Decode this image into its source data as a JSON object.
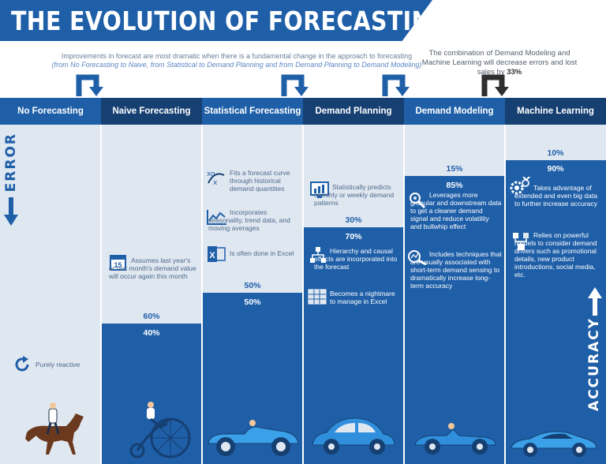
{
  "title": "THE EVOLUTION OF FORECASTING",
  "note_left": {
    "line1": "Improvements in forecast are most dramatic when there is a fundamental change in the approach to forecasting",
    "line2": "(from No Forecasting to Naive, from Statistical to Demand Planning and from Demand Planning to Demand Modeling)"
  },
  "note_right": {
    "text": "The combination of Demand Modeling and Machine Learning will decrease errors and lost sales by",
    "highlight": "33%"
  },
  "columns": [
    {
      "label": "No Forecasting",
      "error": "",
      "accuracy": ""
    },
    {
      "label": "Naive Forecasting",
      "error": "60%",
      "accuracy": "40%"
    },
    {
      "label": "Statistical Forecasting",
      "error": "50%",
      "accuracy": "50%"
    },
    {
      "label": "Demand Planning",
      "error": "30%",
      "accuracy": "70%"
    },
    {
      "label": "Demand Modeling",
      "error": "15%",
      "accuracy": "85%"
    },
    {
      "label": "Machine Learning",
      "error": "10%",
      "accuracy": "90%"
    }
  ],
  "items": {
    "no_forecasting": [
      "Purely reactive"
    ],
    "naive": [
      "Assumes last year's or last month's demand value will occur again this month"
    ],
    "statistical": [
      "Fits a forecast curve through historical demand quantities",
      "Incorporates seasonality, trend data, and moving averages",
      "Is often done in Excel"
    ],
    "demand_planning": [
      "Statistically predicts monthly or weekly demand patterns",
      "Hierarchy and causal effects are incorporated into the forecast",
      "Becomes a nightmare to manage in Excel"
    ],
    "demand_modeling": [
      "Leverages more granular and downstream data to get a cleaner demand signal and reduce volatility and bullwhip effect",
      "Includes techniques that are usually associated with short-term demand sensing to dramatically increase long-term accuracy"
    ],
    "machine_learning": [
      "Takes advantage of extended and even big data to further increase accuracy",
      "Relies on powerful models to consider demand drivers such as promotional details, new product introductions, social media, etc."
    ]
  },
  "axis": {
    "error": "ERROR",
    "accuracy": "ACCURACY"
  },
  "icons": [
    "refresh-icon",
    "calendar-icon",
    "curve-fit-icon",
    "trend-chart-icon",
    "excel-icon",
    "dashboard-icon",
    "hierarchy-icon",
    "spreadsheet-icon",
    "search-data-icon",
    "magnifier-chart-icon",
    "gears-icon",
    "network-icon"
  ],
  "colors": {
    "primary": "#1f5fa8",
    "dark": "#163f72",
    "light": "#dfe7f1"
  }
}
